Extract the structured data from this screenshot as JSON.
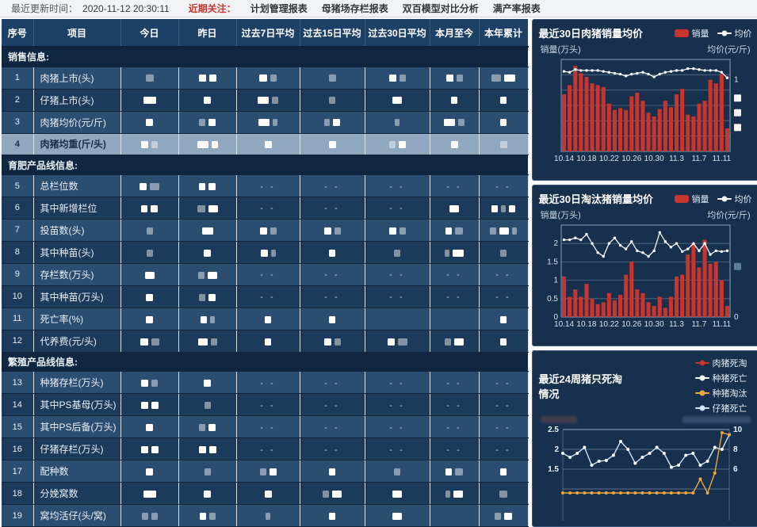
{
  "topbar": {
    "update_label": "最近更新时间：",
    "update_time": "2020-11-12 20:30:11",
    "focus_label": "近期关注：",
    "links": [
      "计划管理报表",
      "母猪场存栏报表",
      "双百模型对比分析",
      "满产率报表"
    ]
  },
  "table": {
    "headers": [
      "序号",
      "项目",
      "今日",
      "昨日",
      "过去7日平均",
      "过去15日平均",
      "过去30日平均",
      "本月至今",
      "本年累计"
    ],
    "selected_row": "4",
    "groups": [
      {
        "title": "销售信息:",
        "rows": [
          {
            "no": "1",
            "name": "肉猪上市(头)",
            "cells": [
              [
                "g10"
              ],
              [
                "w9",
                "w9"
              ],
              [
                "w10",
                "g8"
              ],
              [
                "g9"
              ],
              [
                "w9",
                "g8"
              ],
              [
                "w9",
                "g8"
              ],
              [
                "g12",
                "w14"
              ]
            ]
          },
          {
            "no": "2",
            "name": "仔猪上市(头)",
            "cells": [
              [
                "w16"
              ],
              [
                "w9"
              ],
              [
                "w14",
                "g8"
              ],
              [
                "g8"
              ],
              [
                "w12"
              ],
              [
                "w8"
              ],
              [
                "w8"
              ]
            ]
          },
          {
            "no": "3",
            "name": "肉猪均价(元/斤)",
            "cells": [
              [
                "w9"
              ],
              [
                "g8",
                "w9"
              ],
              [
                "w14",
                "g6"
              ],
              [
                "g7",
                "w9"
              ],
              [
                "g6"
              ],
              [
                "w14",
                "g8"
              ],
              [
                "w8"
              ]
            ]
          },
          {
            "no": "4",
            "name": "肉猪均重(斤/头)",
            "cells": [
              [
                "w9",
                "g8"
              ],
              [
                "w14",
                "w8"
              ],
              [
                "w9"
              ],
              [
                "w9"
              ],
              [
                "g8",
                "w9"
              ],
              [
                "w9"
              ],
              [
                "g9"
              ]
            ]
          }
        ]
      },
      {
        "title": "育肥产品线信息:",
        "rows": [
          {
            "no": "5",
            "name": "总栏位数",
            "cells": [
              [
                "w9",
                "g12"
              ],
              [
                "w8",
                "w9"
              ],
              [
                "d"
              ],
              [
                "d"
              ],
              [
                "d"
              ],
              [
                "d"
              ],
              [
                "d"
              ]
            ]
          },
          {
            "no": "6",
            "name": "其中新增栏位",
            "cells": [
              [
                "w8",
                "w9"
              ],
              [
                "g10",
                "w12"
              ],
              [
                "d"
              ],
              [
                "d"
              ],
              [
                "d"
              ],
              [
                "w12"
              ],
              [
                "w8",
                "g6",
                "w8"
              ]
            ]
          },
          {
            "no": "7",
            "name": "投苗数(头)",
            "cells": [
              [
                "g8"
              ],
              [
                "w14"
              ],
              [
                "w9",
                "g8"
              ],
              [
                "w9",
                "g8"
              ],
              [
                "w9",
                "g8"
              ],
              [
                "w8",
                "g10"
              ],
              [
                "g8",
                "w12",
                "g6"
              ]
            ]
          },
          {
            "no": "8",
            "name": "其中种苗(头)",
            "cells": [
              [
                "g8"
              ],
              [
                "w9"
              ],
              [
                "w9",
                "g6"
              ],
              [
                "w8"
              ],
              [
                "g8"
              ],
              [
                "g6",
                "w14"
              ],
              [
                "g8"
              ]
            ]
          },
          {
            "no": "9",
            "name": "存栏数(万头)",
            "cells": [
              [
                "w12"
              ],
              [
                "g8",
                "w12"
              ],
              [
                "d"
              ],
              [
                "d"
              ],
              [
                "d"
              ],
              [
                "d"
              ],
              [
                "d"
              ]
            ]
          },
          {
            "no": "10",
            "name": "其中种苗(万头)",
            "cells": [
              [
                "w9"
              ],
              [
                "g8",
                "w9"
              ],
              [
                "d"
              ],
              [
                "d"
              ],
              [
                "d"
              ],
              [
                "d"
              ],
              [
                "d"
              ]
            ]
          },
          {
            "no": "11",
            "name": "死亡率(%)",
            "cells": [
              [
                "w9"
              ],
              [
                "w8",
                "g6"
              ],
              [
                "w8"
              ],
              [
                "w8"
              ],
              [],
              [],
              [
                "w8"
              ]
            ]
          },
          {
            "no": "12",
            "name": "代养费(元/头)",
            "cells": [
              [
                "w10",
                "g10"
              ],
              [
                "w12",
                "g8"
              ],
              [
                "w8"
              ],
              [
                "w9",
                "g8"
              ],
              [
                "w9",
                "g12"
              ],
              [
                "g8",
                "w12"
              ],
              [
                "w8"
              ]
            ]
          }
        ]
      },
      {
        "title": "繁殖产品线信息:",
        "rows": [
          {
            "no": "13",
            "name": "种猪存栏(万头)",
            "cells": [
              [
                "w9",
                "g8"
              ],
              [
                "w9"
              ],
              [
                "d"
              ],
              [
                "d"
              ],
              [
                "d"
              ],
              [
                "d"
              ],
              [
                "d"
              ]
            ]
          },
          {
            "no": "14",
            "name": "其中PS基母(万头)",
            "cells": [
              [
                "w9",
                "w9"
              ],
              [
                "g8"
              ],
              [
                "d"
              ],
              [
                "d"
              ],
              [
                "d"
              ],
              [
                "d"
              ],
              [
                "d"
              ]
            ]
          },
          {
            "no": "15",
            "name": "其中PS后备(万头)",
            "cells": [
              [
                "w9"
              ],
              [
                "g8",
                "w9"
              ],
              [
                "d"
              ],
              [
                "d"
              ],
              [
                "d"
              ],
              [
                "d"
              ],
              [
                "d"
              ]
            ]
          },
          {
            "no": "16",
            "name": "仔猪存栏(万头)",
            "cells": [
              [
                "w9",
                "w9"
              ],
              [
                "w9",
                "w9"
              ],
              [
                "d"
              ],
              [
                "d"
              ],
              [
                "d"
              ],
              [
                "d"
              ],
              [
                "d"
              ]
            ]
          },
          {
            "no": "17",
            "name": "配种数",
            "cells": [
              [
                "w9"
              ],
              [
                "g8"
              ],
              [
                "g8",
                "w9"
              ],
              [
                "w8"
              ],
              [
                "g8"
              ],
              [
                "w8",
                "g10"
              ],
              [
                "w8"
              ]
            ]
          },
          {
            "no": "18",
            "name": "分娩窝数",
            "cells": [
              [
                "w16"
              ],
              [
                "w9"
              ],
              [
                "w9"
              ],
              [
                "g8",
                "w12"
              ],
              [
                "w12"
              ],
              [
                "g6",
                "w12"
              ],
              [
                "g10"
              ]
            ]
          },
          {
            "no": "19",
            "name": "窝均活仔(头/窝)",
            "cells": [
              [
                "g8",
                "g8"
              ],
              [
                "w8",
                "g8"
              ],
              [
                "g6"
              ],
              [
                "w8"
              ],
              [
                "w12"
              ],
              [],
              [
                "g8",
                "w10"
              ]
            ]
          }
        ]
      }
    ]
  },
  "chart_data": [
    {
      "type": "bar+line",
      "title": "最近30日肉猪销量均价",
      "legend": [
        {
          "label": "销量",
          "color": "#c8342e",
          "symbol": "bar"
        },
        {
          "label": "均价",
          "color": "#ffffff",
          "symbol": "line"
        }
      ],
      "y_left_label": "销量(万头)",
      "y_right_label": "均价(元/斤)",
      "x_labels": [
        "10.14",
        "10.18",
        "10.22",
        "10.26",
        "10.30",
        "11.3",
        "11.7",
        "11.11"
      ],
      "ylim": [
        0,
        100
      ],
      "grid_div": 6,
      "left_ticks": [],
      "right_marks": [
        {
          "pos": 0.22,
          "text": "1"
        },
        {
          "pos": 0.42,
          "block": "#f4f6f8"
        },
        {
          "pos": 0.58,
          "block": "#eef1f4"
        },
        {
          "pos": 0.74,
          "block": "#ffffff"
        }
      ],
      "bars": [
        62,
        72,
        93,
        85,
        81,
        74,
        72,
        70,
        52,
        45,
        47,
        45,
        60,
        64,
        55,
        42,
        38,
        46,
        55,
        48,
        62,
        68,
        40,
        38,
        52,
        55,
        78,
        74,
        84,
        25
      ],
      "line": [
        87,
        86,
        89,
        88,
        88,
        88,
        88,
        87,
        86,
        85,
        84,
        82,
        84,
        85,
        86,
        84,
        81,
        84,
        86,
        87,
        88,
        88,
        90,
        90,
        89,
        88,
        88,
        88,
        86,
        80
      ]
    },
    {
      "type": "bar+line",
      "title": "最近30日淘汰猪销量均价",
      "legend": [
        {
          "label": "销量",
          "color": "#c8342e",
          "symbol": "bar"
        },
        {
          "label": "均价",
          "color": "#ffffff",
          "symbol": "line"
        }
      ],
      "y_left_label": "销量(万头)",
      "y_right_label": "均价(元/斤)",
      "x_labels": [
        "10.14",
        "10.18",
        "10.22",
        "10.26",
        "10.30",
        "11.3",
        "11.7",
        "11.11"
      ],
      "ylim": [
        0,
        2.5
      ],
      "grid_div": 5,
      "left_ticks": [
        [
          "2",
          2
        ],
        [
          "1.5",
          1.5
        ],
        [
          "1",
          1
        ],
        [
          "0.5",
          0.5
        ],
        [
          "0",
          0
        ]
      ],
      "right_marks": [
        {
          "pos": 1.0,
          "text": "0"
        },
        {
          "pos": 0.45,
          "block": "#5d7d9d"
        }
      ],
      "bars": [
        1.1,
        0.55,
        0.75,
        0.55,
        0.9,
        0.5,
        0.35,
        0.4,
        0.65,
        0.45,
        0.6,
        1.15,
        1.5,
        0.75,
        0.65,
        0.4,
        0.3,
        0.55,
        0.25,
        0.55,
        1.1,
        1.15,
        1.7,
        2.0,
        1.35,
        2.1,
        1.45,
        1.5,
        1.0,
        0.3
      ],
      "line": [
        2.1,
        2.1,
        2.15,
        2.1,
        2.25,
        2.0,
        1.75,
        1.65,
        2.0,
        2.15,
        1.95,
        1.85,
        2.05,
        1.8,
        1.75,
        1.65,
        1.8,
        2.3,
        2.05,
        1.9,
        2.0,
        1.78,
        1.85,
        2.0,
        1.8,
        2.0,
        1.7,
        1.8,
        1.78,
        1.8
      ]
    },
    {
      "type": "line",
      "title": "最近24周猪只死淘情况",
      "legend": [
        {
          "label": "肉猪死淘",
          "color": "#c8342e",
          "symbol": "line"
        },
        {
          "label": "种猪死亡",
          "color": "#ffffff",
          "symbol": "line"
        },
        {
          "label": "种猪淘汰",
          "color": "#eda73e",
          "symbol": "line"
        },
        {
          "label": "仔猪死亡",
          "color": "#cfe3f5",
          "symbol": "line"
        }
      ],
      "left_ticks": [
        [
          "2.5",
          2.5
        ],
        [
          "2",
          2
        ],
        [
          "1.5",
          1.5
        ]
      ],
      "right_ticks": [
        [
          "10",
          2.5
        ],
        [
          "8",
          2
        ],
        [
          "6",
          1.5
        ]
      ],
      "v_top": 2.5,
      "v_step": 0.5,
      "series": [
        {
          "name": "肉猪死淘",
          "color": "#c8342e",
          "values": []
        },
        {
          "name": "种猪死亡",
          "color": "#ffffff",
          "values": []
        },
        {
          "name": "仔猪死亡",
          "color": "#cfe3f5",
          "values": [
            1.9,
            1.8,
            1.9,
            2.05,
            1.6,
            1.7,
            1.72,
            1.85,
            2.2,
            2.0,
            1.65,
            1.8,
            1.9,
            2.05,
            1.9,
            1.55,
            1.6,
            1.85,
            1.9,
            1.6,
            1.7,
            2.05,
            2.0,
            2.37
          ]
        },
        {
          "name": "种猪淘汰",
          "color": "#eda73e",
          "values": [
            0.9,
            0.9,
            0.9,
            0.9,
            0.9,
            0.9,
            0.9,
            0.9,
            0.9,
            0.9,
            0.9,
            0.9,
            0.9,
            0.9,
            0.9,
            0.9,
            0.9,
            0.9,
            0.9,
            1.25,
            0.9,
            1.4,
            2.42,
            2.37
          ]
        }
      ]
    }
  ]
}
